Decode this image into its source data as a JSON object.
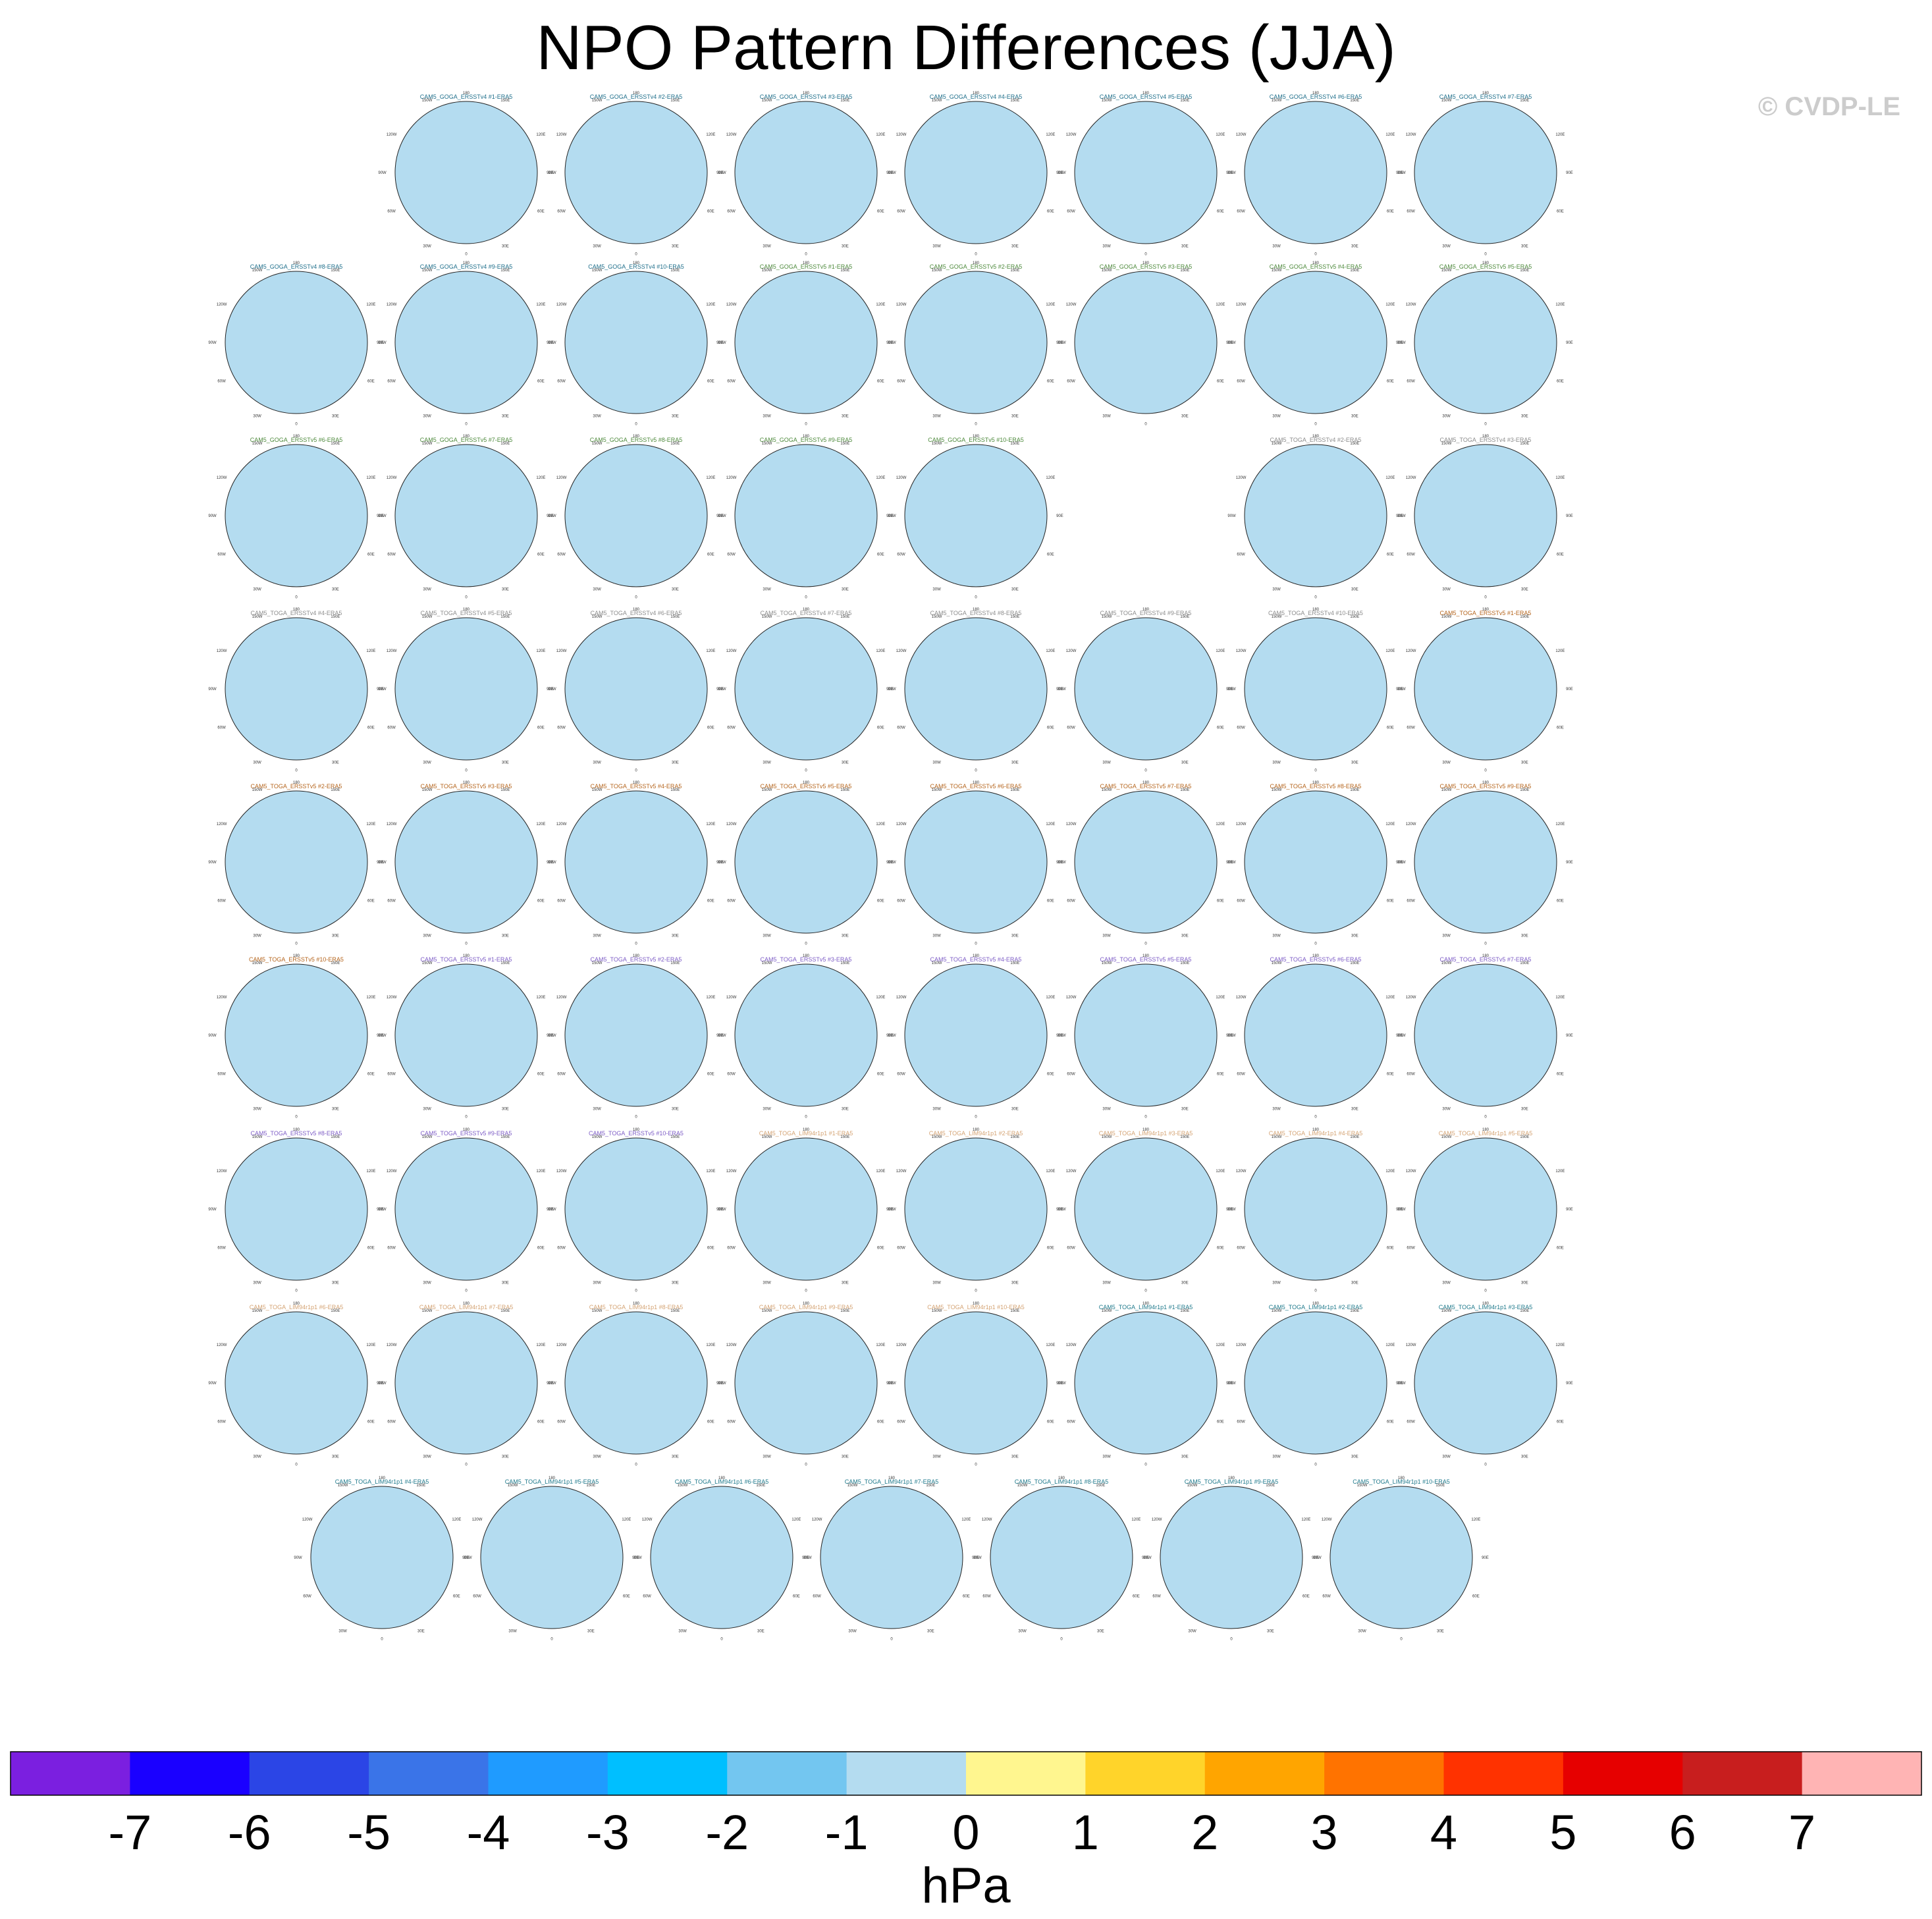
{
  "header": {
    "title": "NPO Pattern Differences (JJA)",
    "copyright": "© CVDP-LE"
  },
  "chart_data": {
    "type": "heatmap",
    "title": "NPO Pattern Differences (JJA)",
    "projection": "north polar stereographic",
    "units": "hPa",
    "colorbar": {
      "labels": [
        "-7",
        "-6",
        "-5",
        "-4",
        "-3",
        "-2",
        "-1",
        "0",
        "1",
        "2",
        "3",
        "4",
        "5",
        "6",
        "7"
      ],
      "colors": [
        "#7b1fe0",
        "#1a00ff",
        "#2b45e6",
        "#3a74e8",
        "#1f9bff",
        "#00bfff",
        "#73c6f0",
        "#b4dcf0",
        "#fff68f",
        "#ffd42a",
        "#ffa500",
        "#ff7300",
        "#ff3200",
        "#e60000",
        "#c81e1e",
        "#ffb4b4"
      ]
    },
    "map_axis_labels": {
      "top": "180",
      "upper_left": "150W",
      "upper_right": "150E",
      "left_upper": "120W",
      "right_upper": "120E",
      "left": "90W",
      "right": "90E",
      "left_lower": "60W",
      "right_lower": "60E",
      "lower_left": "30W",
      "lower_right": "30E",
      "bottom": "0"
    },
    "panel_title_colors": {
      "ERSSTv4": "#1f6f8b",
      "GOGA_ERSSTv5": "#4e8a3c",
      "TOGA_ERSSTv4": "#8c8c8c",
      "TOGA_ERSSTv4_last": "#b5651d",
      "TOGA_ERSSTv5": "#b5651d",
      "TOGA_ERSSTv5_b": "#7d5cc6",
      "LIM": "#d4a373",
      "LIM_b": "#1f7a8c"
    },
    "panels": [
      {
        "title": "CAM5_GOGA_ERSSTv4 #1-ERA5",
        "group": "ERSSTv4",
        "pattern": "A"
      },
      {
        "title": "CAM5_GOGA_ERSSTv4 #2-ERA5",
        "group": "ERSSTv4",
        "pattern": "B"
      },
      {
        "title": "CAM5_GOGA_ERSSTv4 #3-ERA5",
        "group": "ERSSTv4",
        "pattern": "B"
      },
      {
        "title": "CAM5_GOGA_ERSSTv4 #4-ERA5",
        "group": "ERSSTv4",
        "pattern": "C"
      },
      {
        "title": "CAM5_GOGA_ERSSTv4 #5-ERA5",
        "group": "ERSSTv4",
        "pattern": "C"
      },
      {
        "title": "CAM5_GOGA_ERSSTv4 #6-ERA5",
        "group": "ERSSTv4",
        "pattern": "A"
      },
      {
        "title": "CAM5_GOGA_ERSSTv4 #7-ERA5",
        "group": "ERSSTv4",
        "pattern": "D"
      },
      {
        "title": "CAM5_GOGA_ERSSTv4 #8-ERA5",
        "group": "ERSSTv4",
        "pattern": "A"
      },
      {
        "title": "CAM5_GOGA_ERSSTv4 #9-ERA5",
        "group": "ERSSTv4",
        "pattern": "A"
      },
      {
        "title": "CAM5_GOGA_ERSSTv4 #10-ERA5",
        "group": "ERSSTv4",
        "pattern": "B"
      },
      {
        "title": "CAM5_GOGA_ERSSTv5 #1-ERA5",
        "group": "GOGA_ERSSTv5",
        "pattern": "E"
      },
      {
        "title": "CAM5_GOGA_ERSSTv5 #2-ERA5",
        "group": "GOGA_ERSSTv5",
        "pattern": "A"
      },
      {
        "title": "CAM5_GOGA_ERSSTv5 #3-ERA5",
        "group": "GOGA_ERSSTv5",
        "pattern": "C"
      },
      {
        "title": "CAM5_GOGA_ERSSTv5 #4-ERA5",
        "group": "GOGA_ERSSTv5",
        "pattern": "F"
      },
      {
        "title": "CAM5_GOGA_ERSSTv5 #5-ERA5",
        "group": "GOGA_ERSSTv5",
        "pattern": "A"
      },
      {
        "title": "CAM5_GOGA_ERSSTv5 #6-ERA5",
        "group": "GOGA_ERSSTv5",
        "pattern": "A"
      },
      {
        "title": "CAM5_GOGA_ERSSTv5 #7-ERA5",
        "group": "GOGA_ERSSTv5",
        "pattern": "E"
      },
      {
        "title": "CAM5_GOGA_ERSSTv5 #8-ERA5",
        "group": "GOGA_ERSSTv5",
        "pattern": "G"
      },
      {
        "title": "CAM5_GOGA_ERSSTv5 #9-ERA5",
        "group": "GOGA_ERSSTv5",
        "pattern": "A"
      },
      {
        "title": "CAM5_GOGA_ERSSTv5 #10-ERA5",
        "group": "GOGA_ERSSTv5",
        "pattern": "A"
      },
      {
        "title": "CAM5_TOGA_ERSSTv4 #2-ERA5",
        "group": "TOGA_ERSSTv4",
        "pattern": "B"
      },
      {
        "title": "CAM5_TOGA_ERSSTv4 #3-ERA5",
        "group": "TOGA_ERSSTv4",
        "pattern": "A"
      },
      {
        "title": "CAM5_TOGA_ERSSTv4 #4-ERA5",
        "group": "TOGA_ERSSTv4",
        "pattern": "C"
      },
      {
        "title": "CAM5_TOGA_ERSSTv4 #5-ERA5",
        "group": "TOGA_ERSSTv4",
        "pattern": "C"
      },
      {
        "title": "CAM5_TOGA_ERSSTv4 #6-ERA5",
        "group": "TOGA_ERSSTv4",
        "pattern": "A"
      },
      {
        "title": "CAM5_TOGA_ERSSTv4 #7-ERA5",
        "group": "TOGA_ERSSTv4",
        "pattern": "C"
      },
      {
        "title": "CAM5_TOGA_ERSSTv4 #8-ERA5",
        "group": "TOGA_ERSSTv4",
        "pattern": "A"
      },
      {
        "title": "CAM5_TOGA_ERSSTv4 #9-ERA5",
        "group": "TOGA_ERSSTv4",
        "pattern": "C"
      },
      {
        "title": "CAM5_TOGA_ERSSTv4 #10-ERA5",
        "group": "TOGA_ERSSTv4",
        "pattern": "A"
      },
      {
        "title": "CAM5_TOGA_ERSSTv5 #1-ERA5",
        "group": "TOGA_ERSSTv4_last",
        "pattern": "A"
      },
      {
        "title": "CAM5_TOGA_ERSSTv5 #2-ERA5",
        "group": "TOGA_ERSSTv5",
        "pattern": "C"
      },
      {
        "title": "CAM5_TOGA_ERSSTv5 #3-ERA5",
        "group": "TOGA_ERSSTv5",
        "pattern": "C"
      },
      {
        "title": "CAM5_TOGA_ERSSTv5 #4-ERA5",
        "group": "TOGA_ERSSTv5",
        "pattern": "C"
      },
      {
        "title": "CAM5_TOGA_ERSSTv5 #5-ERA5",
        "group": "TOGA_ERSSTv5",
        "pattern": "C"
      },
      {
        "title": "CAM5_TOGA_ERSSTv5 #6-ERA5",
        "group": "TOGA_ERSSTv5",
        "pattern": "C"
      },
      {
        "title": "CAM5_TOGA_ERSSTv5 #7-ERA5",
        "group": "TOGA_ERSSTv5",
        "pattern": "C"
      },
      {
        "title": "CAM5_TOGA_ERSSTv5 #8-ERA5",
        "group": "TOGA_ERSSTv5",
        "pattern": "C"
      },
      {
        "title": "CAM5_TOGA_ERSSTv5 #9-ERA5",
        "group": "TOGA_ERSSTv5",
        "pattern": "C"
      },
      {
        "title": "CAM5_TOGA_ERSSTv5 #10-ERA5",
        "group": "TOGA_ERSSTv5",
        "pattern": "C"
      },
      {
        "title": "CAM5_TOGA_ERSSTv5 #1-ERA5",
        "group": "TOGA_ERSSTv5_b",
        "pattern": "D"
      },
      {
        "title": "CAM5_TOGA_ERSSTv5 #2-ERA5",
        "group": "TOGA_ERSSTv5_b",
        "pattern": "B"
      },
      {
        "title": "CAM5_TOGA_ERSSTv5 #3-ERA5",
        "group": "TOGA_ERSSTv5_b",
        "pattern": "A"
      },
      {
        "title": "CAM5_TOGA_ERSSTv5 #4-ERA5",
        "group": "TOGA_ERSSTv5_b",
        "pattern": "A"
      },
      {
        "title": "CAM5_TOGA_ERSSTv5 #5-ERA5",
        "group": "TOGA_ERSSTv5_b",
        "pattern": "B"
      },
      {
        "title": "CAM5_TOGA_ERSSTv5 #6-ERA5",
        "group": "TOGA_ERSSTv5_b",
        "pattern": "F"
      },
      {
        "title": "CAM5_TOGA_ERSSTv5 #7-ERA5",
        "group": "TOGA_ERSSTv5_b",
        "pattern": "G"
      },
      {
        "title": "CAM5_TOGA_ERSSTv5 #8-ERA5",
        "group": "TOGA_ERSSTv5_b",
        "pattern": "A"
      },
      {
        "title": "CAM5_TOGA_ERSSTv5 #9-ERA5",
        "group": "TOGA_ERSSTv5_b",
        "pattern": "C"
      },
      {
        "title": "CAM5_TOGA_ERSSTv5 #10-ERA5",
        "group": "TOGA_ERSSTv5_b",
        "pattern": "A"
      },
      {
        "title": "CAM5_TOGA_LIM94r1p1 #1-ERA5",
        "group": "LIM",
        "pattern": "B"
      },
      {
        "title": "CAM5_TOGA_LIM94r1p1 #2-ERA5",
        "group": "LIM",
        "pattern": "G"
      },
      {
        "title": "CAM5_TOGA_LIM94r1p1 #3-ERA5",
        "group": "LIM",
        "pattern": "A"
      },
      {
        "title": "CAM5_TOGA_LIM94r1p1 #4-ERA5",
        "group": "LIM",
        "pattern": "B"
      },
      {
        "title": "CAM5_TOGA_LIM94r1p1 #5-ERA5",
        "group": "LIM",
        "pattern": "C"
      },
      {
        "title": "CAM5_TOGA_LIM94r1p1 #6-ERA5",
        "group": "LIM",
        "pattern": "E"
      },
      {
        "title": "CAM5_TOGA_LIM94r1p1 #7-ERA5",
        "group": "LIM",
        "pattern": "E"
      },
      {
        "title": "CAM5_TOGA_LIM94r1p1 #8-ERA5",
        "group": "LIM",
        "pattern": "C"
      },
      {
        "title": "CAM5_TOGA_LIM94r1p1 #9-ERA5",
        "group": "LIM",
        "pattern": "F"
      },
      {
        "title": "CAM5_TOGA_LIM94r1p1 #10-ERA5",
        "group": "LIM",
        "pattern": "E"
      },
      {
        "title": "CAM5_TOGA_LIM94r1p1 #1-ERA5",
        "group": "LIM_b",
        "pattern": "D"
      },
      {
        "title": "CAM5_TOGA_LIM94r1p1 #2-ERA5",
        "group": "LIM_b",
        "pattern": "A"
      },
      {
        "title": "CAM5_TOGA_LIM94r1p1 #3-ERA5",
        "group": "LIM_b",
        "pattern": "B"
      },
      {
        "title": "CAM5_TOGA_LIM94r1p1 #4-ERA5",
        "group": "LIM_b",
        "pattern": "B"
      },
      {
        "title": "CAM5_TOGA_LIM94r1p1 #5-ERA5",
        "group": "LIM_b",
        "pattern": "B"
      },
      {
        "title": "CAM5_TOGA_LIM94r1p1 #6-ERA5",
        "group": "LIM_b",
        "pattern": "A"
      },
      {
        "title": "CAM5_TOGA_LIM94r1p1 #7-ERA5",
        "group": "LIM_b",
        "pattern": "E"
      },
      {
        "title": "CAM5_TOGA_LIM94r1p1 #8-ERA5",
        "group": "LIM_b",
        "pattern": "C"
      },
      {
        "title": "CAM5_TOGA_LIM94r1p1 #9-ERA5",
        "group": "LIM_b",
        "pattern": "A"
      },
      {
        "title": "CAM5_TOGA_LIM94r1p1 #10-ERA5",
        "group": "LIM_b",
        "pattern": "B"
      }
    ]
  }
}
